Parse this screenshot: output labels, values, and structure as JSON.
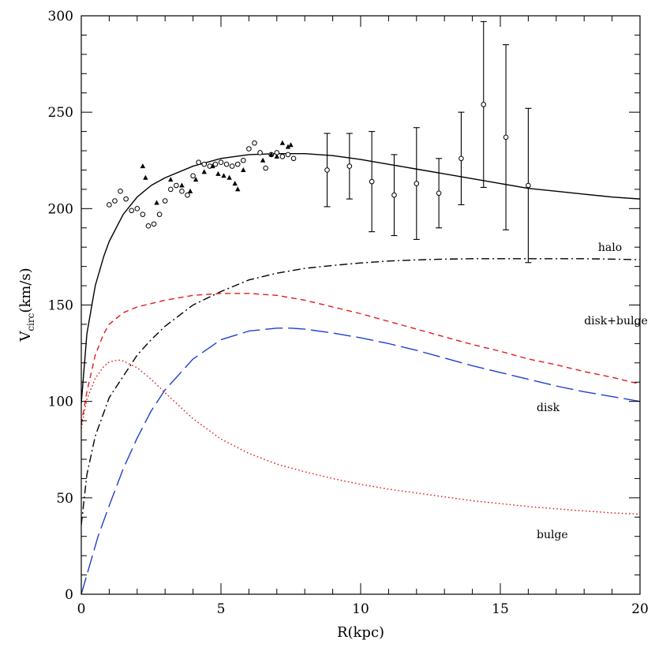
{
  "chart_data": {
    "type": "line",
    "title": "",
    "xlabel": "R(kpc)",
    "ylabel": {
      "main": "V",
      "sub": "circ",
      "unit": "(km/s)"
    },
    "xlim": [
      0,
      20
    ],
    "ylim": [
      0,
      300
    ],
    "xticks": [
      0,
      5,
      10,
      15,
      20
    ],
    "yticks": [
      0,
      50,
      100,
      150,
      200,
      250,
      300
    ],
    "grid": false,
    "legend": "none",
    "colors": {
      "axis": "#000000",
      "total": "#000000",
      "halo": "#000000",
      "disk_bulge": "#e31a1c",
      "disk": "#1f3fcf",
      "bulge": "#e31a1c"
    },
    "series": [
      {
        "key": "total",
        "style": "solid",
        "x": [
          0,
          0.2,
          0.5,
          0.8,
          1.0,
          1.5,
          2.0,
          2.5,
          3,
          4,
          5,
          6,
          7,
          8,
          9,
          10,
          11,
          12,
          13,
          14,
          15,
          16,
          17,
          18,
          19,
          20
        ],
        "y": [
          99,
          135,
          160,
          175,
          183,
          197,
          206,
          212,
          216,
          222,
          226,
          228,
          228.5,
          228.5,
          227.5,
          225.5,
          223,
          220.5,
          218,
          215.5,
          213,
          210.5,
          209,
          207.5,
          206,
          205
        ]
      },
      {
        "key": "halo",
        "style": "dash-dot",
        "label": "halo",
        "x": [
          0,
          0.2,
          0.5,
          1,
          1.5,
          2,
          2.5,
          3,
          4,
          5,
          6,
          7,
          8,
          9,
          10,
          11,
          12,
          13,
          14,
          15,
          16,
          17,
          18,
          19,
          20
        ],
        "y": [
          36,
          62,
          82,
          102,
          113,
          124,
          132,
          139,
          150,
          157,
          163,
          166.5,
          169,
          170.5,
          171.8,
          172.8,
          173.4,
          173.8,
          174,
          174,
          174,
          174,
          174,
          173.8,
          173.5
        ]
      },
      {
        "key": "disk_bulge",
        "style": "short-dash",
        "label": "disk+bulge",
        "x": [
          0,
          0.2,
          0.5,
          0.8,
          1,
          1.5,
          2,
          3,
          4,
          5,
          6,
          7,
          8,
          9,
          10,
          11,
          12,
          13,
          14,
          15,
          16,
          17,
          18,
          19,
          20
        ],
        "y": [
          88,
          105,
          124,
          135,
          140,
          146,
          149,
          152.5,
          155,
          156,
          156,
          155,
          152.5,
          149,
          145.5,
          141.5,
          137.5,
          133.5,
          129.5,
          126,
          122,
          119,
          115.5,
          112.5,
          109
        ]
      },
      {
        "key": "disk",
        "style": "long-dash",
        "label": "disk",
        "x": [
          0,
          0.3,
          0.6,
          1,
          1.5,
          2,
          2.5,
          3,
          4,
          5,
          6,
          7,
          7.5,
          8,
          9,
          10,
          11,
          12,
          13,
          14,
          15,
          16,
          17,
          18,
          19,
          20
        ],
        "y": [
          0,
          15,
          30,
          46,
          65,
          81,
          95,
          106,
          122,
          132,
          136.5,
          138,
          138,
          137.5,
          135.5,
          133,
          130,
          126.5,
          122.5,
          118.5,
          115,
          111.5,
          108,
          105,
          102.5,
          100
        ]
      },
      {
        "key": "bulge",
        "style": "dotted",
        "label": "bulge",
        "x": [
          0,
          0.2,
          0.5,
          0.8,
          1.0,
          1.3,
          1.5,
          2,
          2.5,
          3,
          4,
          5,
          6,
          7,
          8,
          9,
          10,
          11,
          12,
          13,
          14,
          15,
          16,
          17,
          18,
          19,
          20
        ],
        "y": [
          86,
          101,
          112,
          118,
          120.5,
          121.5,
          121,
          117.5,
          111.5,
          104.5,
          91,
          80.5,
          73,
          67.5,
          63.5,
          60,
          57,
          54.5,
          52.5,
          50.5,
          48.5,
          47,
          45.5,
          44.3,
          43.2,
          42.2,
          41.5
        ]
      }
    ],
    "labels": [
      {
        "text": "halo",
        "x": 18.5,
        "y": 178
      },
      {
        "text": "disk+bulge",
        "x": 18.0,
        "y": 140
      },
      {
        "text": "disk",
        "x": 16.3,
        "y": 95
      },
      {
        "text": "bulge",
        "x": 16.3,
        "y": 29
      }
    ],
    "open_points": {
      "x": [
        1.0,
        1.2,
        1.4,
        1.6,
        1.8,
        2.0,
        2.2,
        2.4,
        2.6,
        2.8,
        3.0,
        3.2,
        3.4,
        3.6,
        3.8,
        4.0,
        4.2,
        4.4,
        4.6,
        4.8,
        5.0,
        5.2,
        5.4,
        5.6,
        5.8,
        6.0,
        6.2,
        6.4,
        6.6,
        6.8,
        7.0,
        7.2,
        7.4,
        7.6
      ],
      "y": [
        202,
        204,
        209,
        205,
        199,
        200,
        197,
        191,
        192,
        197,
        204,
        210,
        212,
        209,
        207,
        217,
        224,
        223,
        222,
        223,
        224,
        223,
        222,
        223,
        225,
        231,
        234,
        229,
        221,
        228,
        229,
        227,
        228,
        226
      ]
    },
    "filled_points": {
      "x": [
        2.2,
        2.3,
        2.7,
        3.2,
        3.6,
        3.9,
        4.1,
        4.4,
        4.7,
        4.9,
        5.1,
        5.3,
        5.5,
        5.6,
        5.8,
        6.5,
        6.8,
        7.0,
        7.2,
        7.4,
        7.5
      ],
      "y": [
        222,
        216,
        203,
        215,
        212,
        209,
        215,
        219,
        222,
        218,
        217,
        216,
        213,
        210,
        220,
        225,
        228,
        227,
        234,
        232,
        233
      ]
    },
    "error_points": {
      "x": [
        8.8,
        9.6,
        10.4,
        11.2,
        12.0,
        12.8,
        13.6,
        14.4,
        15.2,
        16.0
      ],
      "y": [
        220,
        222,
        214,
        207,
        213,
        208,
        226,
        254,
        237,
        212
      ],
      "err": [
        19,
        17,
        26,
        21,
        29,
        18,
        24,
        43,
        48,
        40
      ]
    }
  }
}
